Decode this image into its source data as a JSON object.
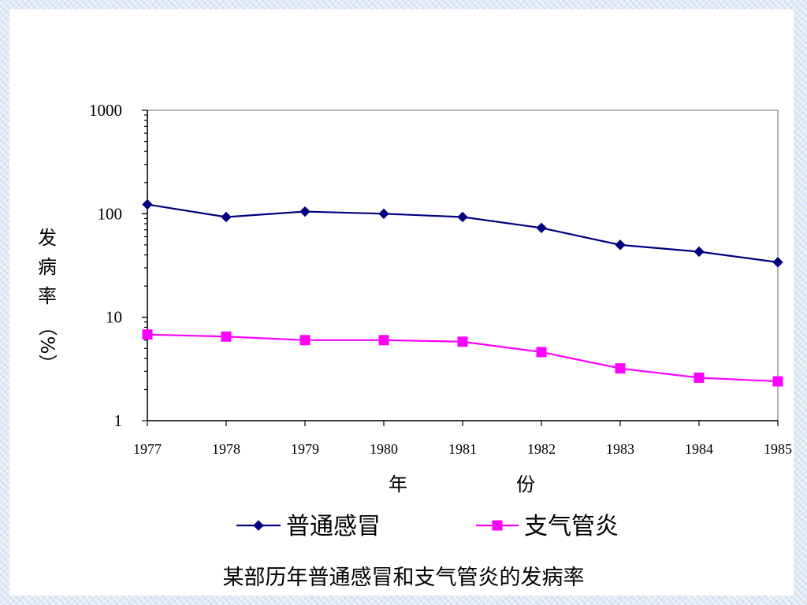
{
  "chart_data": {
    "type": "line",
    "title": "",
    "caption": "某部历年普通感冒和支气管炎的发病率",
    "xlabel": [
      "年",
      "份"
    ],
    "ylabel": [
      "发",
      "病",
      "率",
      "（%）"
    ],
    "y_scale": "log",
    "ylim": [
      1,
      1000
    ],
    "y_ticks": [
      "1",
      "10",
      "100",
      "1000"
    ],
    "x": [
      "1977",
      "1978",
      "1979",
      "1980",
      "1981",
      "1982",
      "1983",
      "1984",
      "1985"
    ],
    "grid": false,
    "legend_position": "bottom",
    "series": [
      {
        "name": "普通感冒",
        "color": "#000080",
        "marker": "diamond",
        "values": [
          123,
          93,
          105,
          100,
          93,
          73,
          50,
          43,
          34
        ]
      },
      {
        "name": "支气管炎",
        "color": "#ff00ff",
        "marker": "square",
        "values": [
          6.8,
          6.5,
          6.0,
          6.0,
          5.8,
          4.6,
          3.2,
          2.6,
          2.4
        ]
      }
    ]
  }
}
